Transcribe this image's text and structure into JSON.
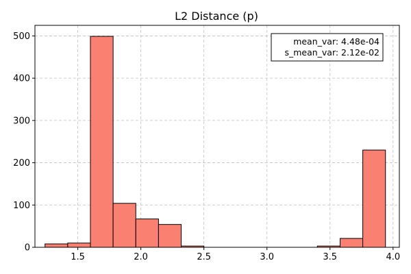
{
  "chart_data": {
    "type": "histogram",
    "title": "L2 Distance (p)",
    "xlabel": "",
    "ylabel": "",
    "bin_edges": [
      1.24,
      1.42,
      1.6,
      1.78,
      1.96,
      2.14,
      2.32,
      2.5,
      2.68,
      2.86,
      3.04,
      3.22,
      3.4,
      3.58,
      3.76,
      3.94
    ],
    "counts": [
      8,
      10,
      499,
      104,
      67,
      54,
      3,
      0,
      0,
      0,
      0,
      0,
      3,
      21,
      230
    ],
    "xlim": [
      1.16,
      4.05
    ],
    "ylim": [
      0,
      525
    ],
    "xticks": [
      1.5,
      2.0,
      2.5,
      3.0,
      3.5,
      4.0
    ],
    "xtick_labels": [
      "1.5",
      "2.0",
      "2.5",
      "3.0",
      "3.5",
      "4.0"
    ],
    "yticks": [
      0,
      100,
      200,
      300,
      400,
      500
    ],
    "ytick_labels": [
      "0",
      "100",
      "200",
      "300",
      "400",
      "500"
    ],
    "grid": true,
    "bar_color": "#fa8072",
    "edge_color": "#000000",
    "annotation": {
      "lines": [
        "mean_var: 4.48e-04",
        "s_mean_var: 2.12e-02"
      ],
      "placement": "top-right"
    }
  }
}
